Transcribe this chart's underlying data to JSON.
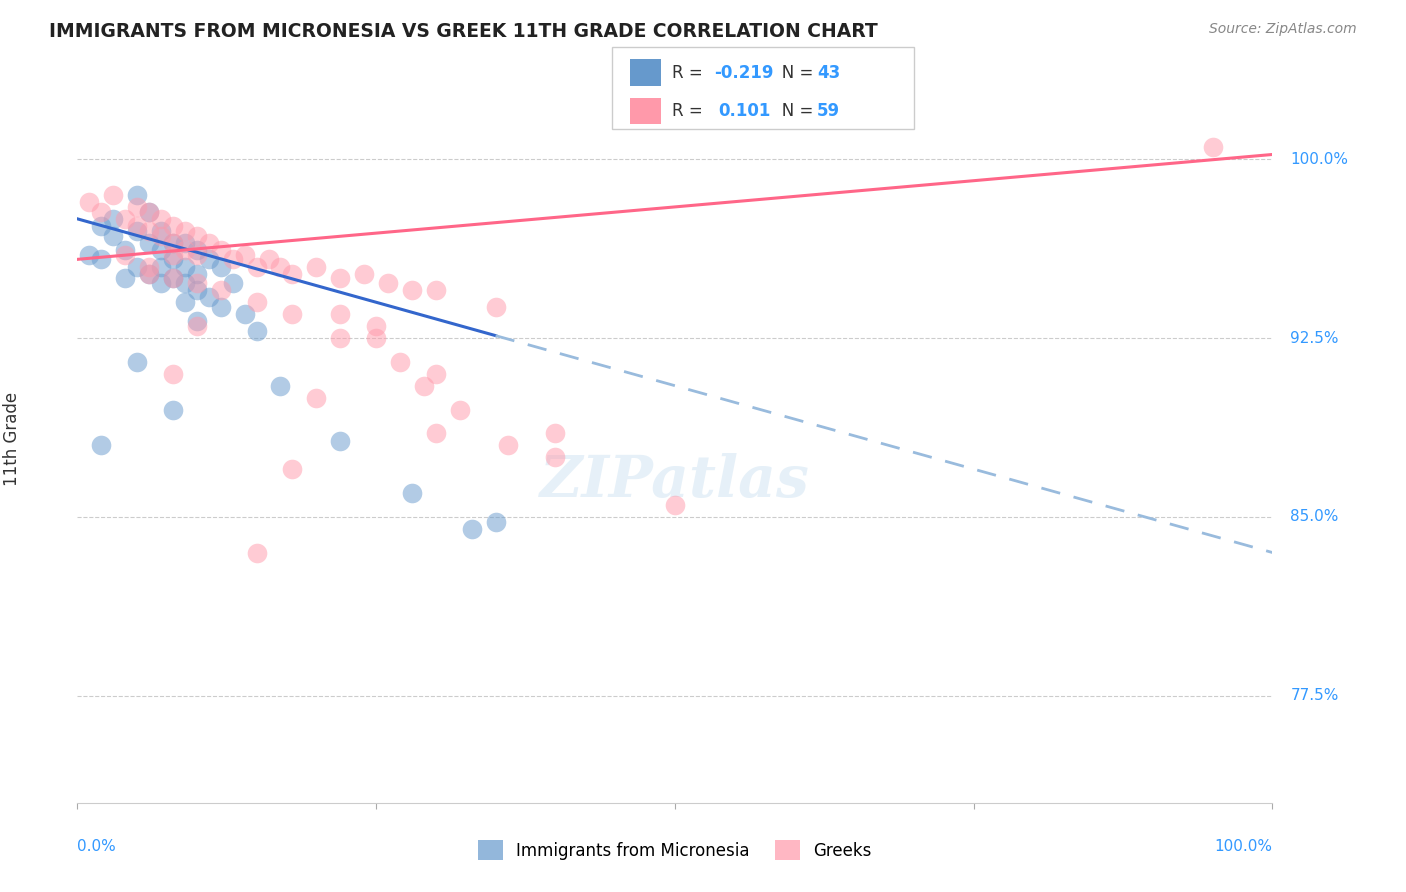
{
  "title": "IMMIGRANTS FROM MICRONESIA VS GREEK 11TH GRADE CORRELATION CHART",
  "source": "Source: ZipAtlas.com",
  "ylabel": "11th Grade",
  "yticks": [
    77.5,
    85.0,
    92.5,
    100.0
  ],
  "ytick_labels": [
    "77.5%",
    "85.0%",
    "92.5%",
    "100.0%"
  ],
  "xmin": 0.0,
  "xmax": 100.0,
  "ymin": 73.0,
  "ymax": 103.5,
  "legend_blue_r": "-0.219",
  "legend_blue_n": "43",
  "legend_pink_r": "0.101",
  "legend_pink_n": "59",
  "blue_color": "#6699CC",
  "pink_color": "#FF99AA",
  "trend_blue_color": "#3366CC",
  "trend_pink_color": "#FF6688",
  "trend_dashed_color": "#99BBDD",
  "watermark": "ZIPatlas",
  "blue_scatter_x": [
    1,
    2,
    2,
    3,
    3,
    4,
    4,
    5,
    5,
    5,
    6,
    6,
    6,
    7,
    7,
    7,
    7,
    8,
    8,
    8,
    9,
    9,
    9,
    9,
    10,
    10,
    10,
    11,
    11,
    12,
    12,
    13,
    14,
    15,
    17,
    22,
    28,
    33,
    2,
    5,
    8,
    10,
    35
  ],
  "blue_scatter_y": [
    96.0,
    97.2,
    95.8,
    97.5,
    96.8,
    96.2,
    95.0,
    98.5,
    97.0,
    95.5,
    97.8,
    96.5,
    95.2,
    97.0,
    96.2,
    95.5,
    94.8,
    96.5,
    95.8,
    95.0,
    96.5,
    95.5,
    94.8,
    94.0,
    96.2,
    95.2,
    94.5,
    95.8,
    94.2,
    95.5,
    93.8,
    94.8,
    93.5,
    92.8,
    90.5,
    88.2,
    86.0,
    84.5,
    88.0,
    91.5,
    89.5,
    93.2,
    84.8
  ],
  "pink_scatter_x": [
    1,
    2,
    3,
    4,
    5,
    5,
    6,
    6,
    7,
    7,
    8,
    8,
    8,
    9,
    9,
    10,
    10,
    11,
    12,
    13,
    14,
    15,
    16,
    17,
    18,
    20,
    22,
    24,
    26,
    28,
    30,
    35,
    4,
    6,
    8,
    10,
    12,
    15,
    18,
    22,
    30,
    40,
    50,
    95,
    25,
    27,
    29,
    32,
    36,
    40,
    22,
    18,
    15,
    25,
    20,
    30,
    10,
    8,
    6
  ],
  "pink_scatter_y": [
    98.2,
    97.8,
    98.5,
    97.5,
    98.0,
    97.2,
    97.8,
    97.0,
    97.5,
    96.8,
    97.2,
    96.5,
    96.0,
    97.0,
    96.2,
    96.8,
    96.0,
    96.5,
    96.2,
    95.8,
    96.0,
    95.5,
    95.8,
    95.5,
    95.2,
    95.5,
    95.0,
    95.2,
    94.8,
    94.5,
    94.5,
    93.8,
    96.0,
    95.5,
    95.0,
    94.8,
    94.5,
    94.0,
    93.5,
    92.5,
    91.0,
    88.5,
    85.5,
    100.5,
    93.0,
    91.5,
    90.5,
    89.5,
    88.0,
    87.5,
    93.5,
    87.0,
    83.5,
    92.5,
    90.0,
    88.5,
    93.0,
    91.0,
    95.2
  ],
  "blue_trend_x0": 0.0,
  "blue_trend_y0": 97.5,
  "blue_trend_x1": 100.0,
  "blue_trend_y1": 83.5,
  "blue_solid_end_x": 35.0,
  "pink_trend_x0": 0.0,
  "pink_trend_y0": 95.8,
  "pink_trend_x1": 100.0,
  "pink_trend_y1": 100.2
}
